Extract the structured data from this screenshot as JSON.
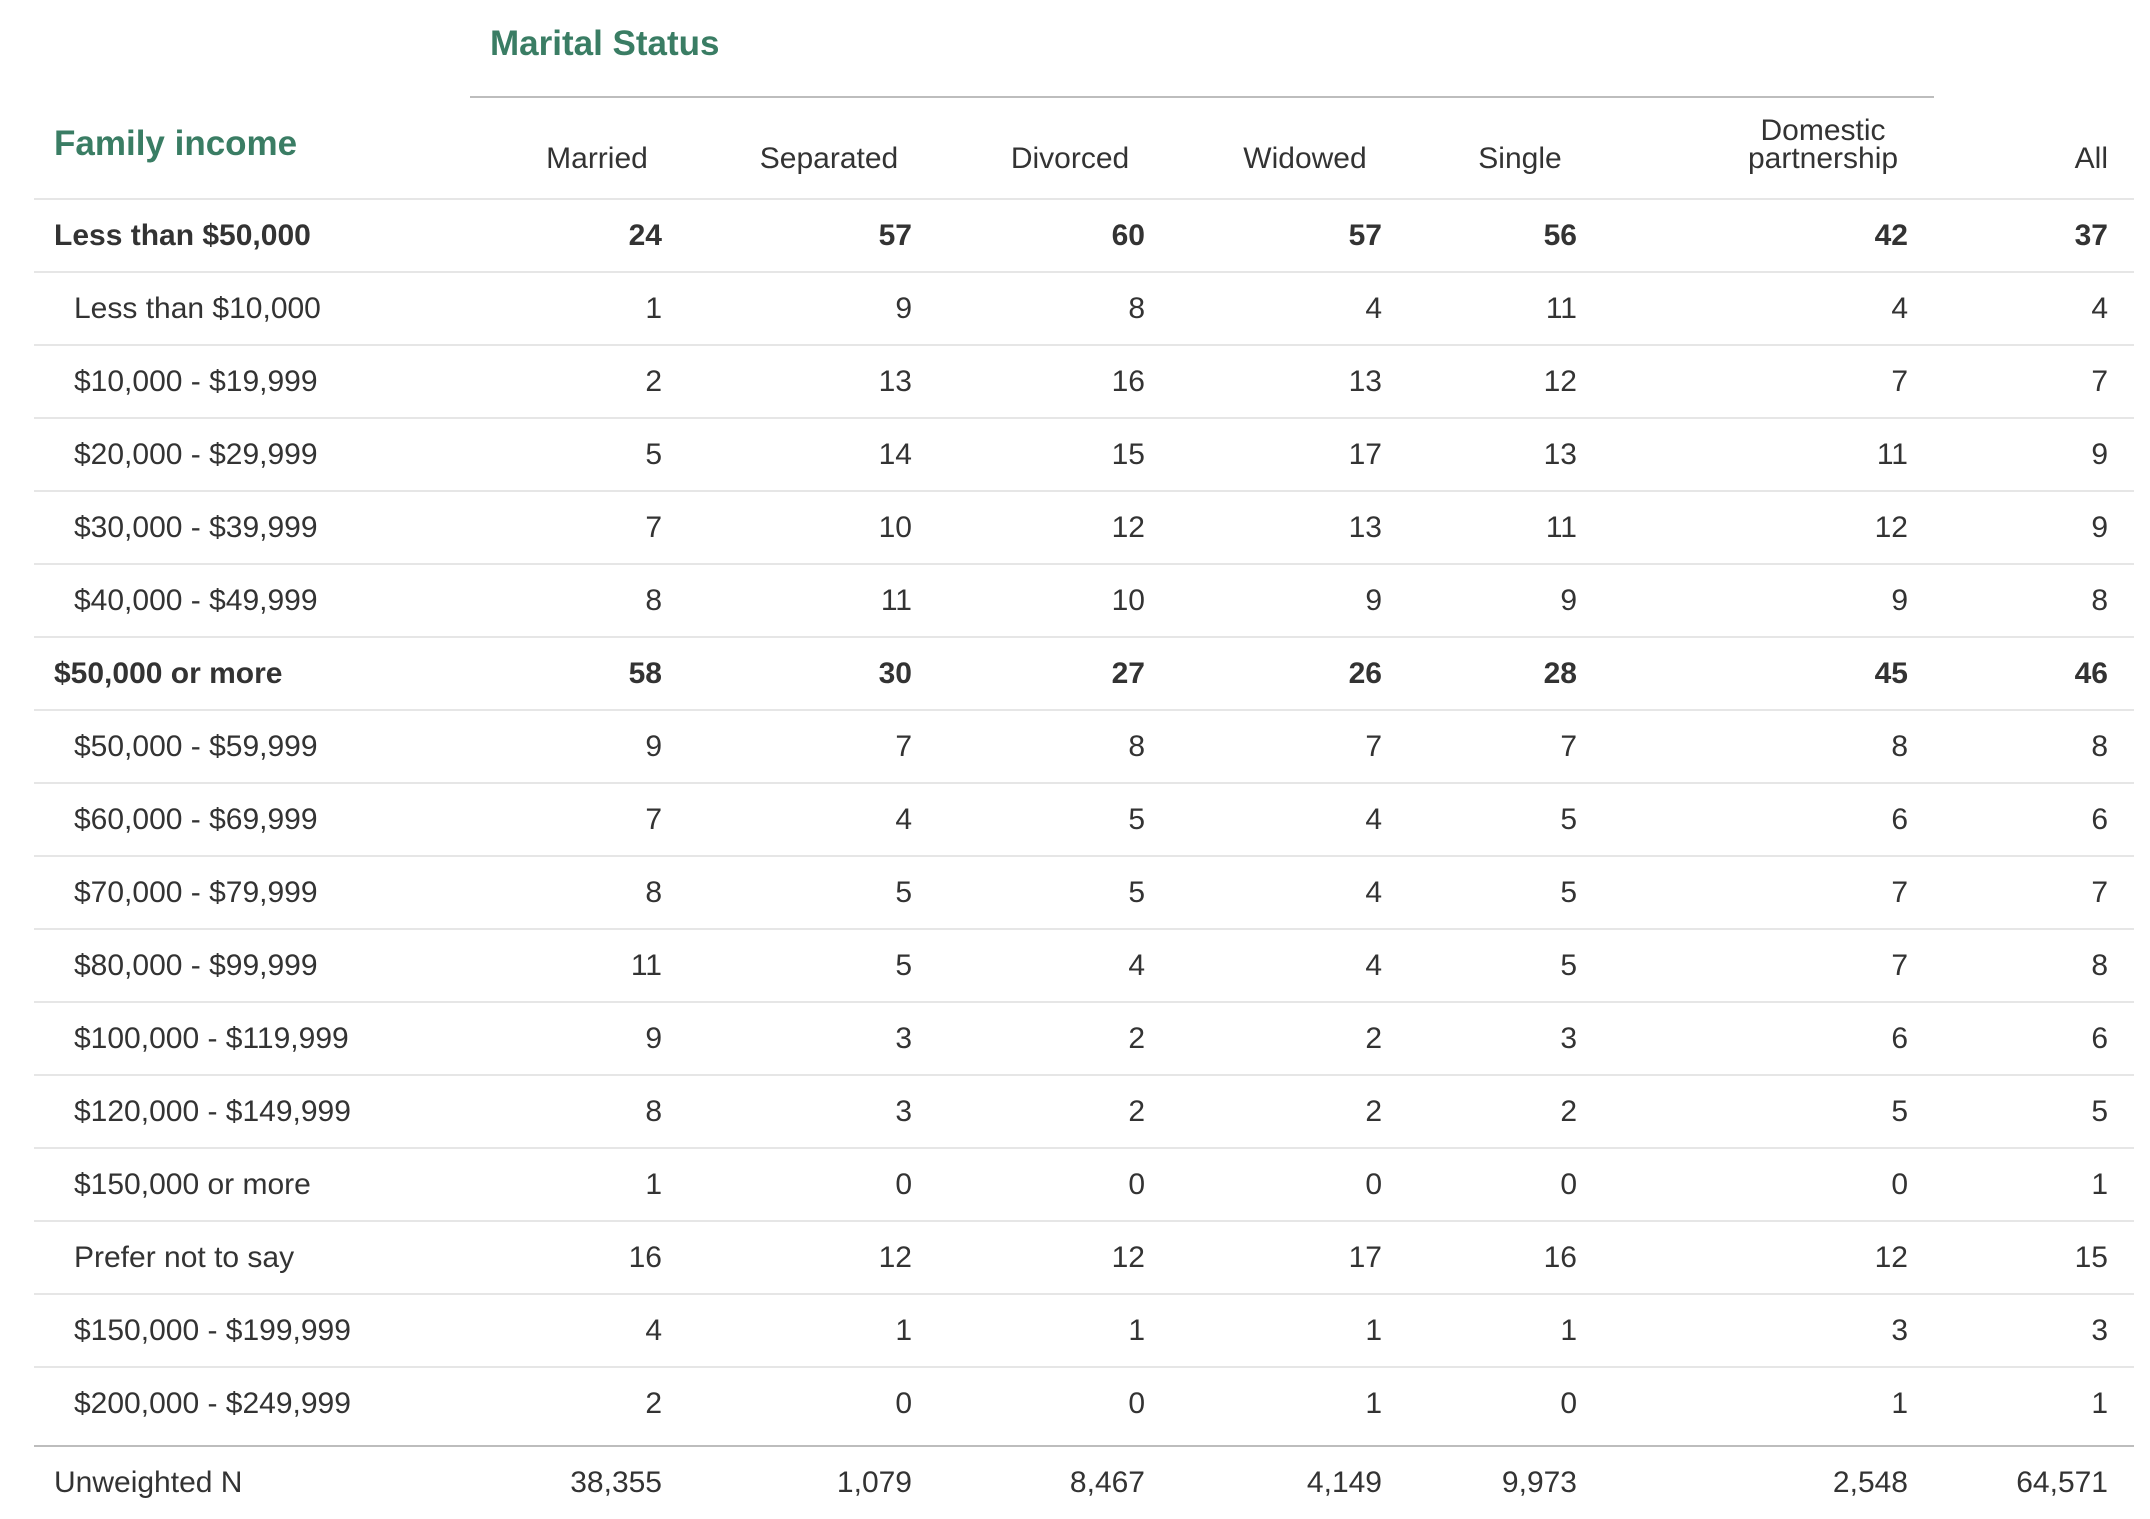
{
  "group_header": "Marital Status",
  "row_header": "Family income",
  "columns": [
    "Married",
    "Separated",
    "Divorced",
    "Widowed",
    "Single",
    "Domestic partnership",
    "All"
  ],
  "rows": [
    {
      "label": "Less than $50,000",
      "bold": true,
      "indent": false,
      "values": [
        "24",
        "57",
        "60",
        "57",
        "56",
        "42",
        "37"
      ]
    },
    {
      "label": "Less than $10,000",
      "bold": false,
      "indent": true,
      "values": [
        "1",
        "9",
        "8",
        "4",
        "11",
        "4",
        "4"
      ]
    },
    {
      "label": "$10,000 - $19,999",
      "bold": false,
      "indent": true,
      "values": [
        "2",
        "13",
        "16",
        "13",
        "12",
        "7",
        "7"
      ]
    },
    {
      "label": "$20,000 - $29,999",
      "bold": false,
      "indent": true,
      "values": [
        "5",
        "14",
        "15",
        "17",
        "13",
        "11",
        "9"
      ]
    },
    {
      "label": "$30,000 - $39,999",
      "bold": false,
      "indent": true,
      "values": [
        "7",
        "10",
        "12",
        "13",
        "11",
        "12",
        "9"
      ]
    },
    {
      "label": "$40,000 - $49,999",
      "bold": false,
      "indent": true,
      "values": [
        "8",
        "11",
        "10",
        "9",
        "9",
        "9",
        "8"
      ]
    },
    {
      "label": "$50,000 or more",
      "bold": true,
      "indent": false,
      "values": [
        "58",
        "30",
        "27",
        "26",
        "28",
        "45",
        "46"
      ]
    },
    {
      "label": "$50,000 - $59,999",
      "bold": false,
      "indent": true,
      "values": [
        "9",
        "7",
        "8",
        "7",
        "7",
        "8",
        "8"
      ]
    },
    {
      "label": "$60,000 - $69,999",
      "bold": false,
      "indent": true,
      "values": [
        "7",
        "4",
        "5",
        "4",
        "5",
        "6",
        "6"
      ]
    },
    {
      "label": "$70,000 - $79,999",
      "bold": false,
      "indent": true,
      "values": [
        "8",
        "5",
        "5",
        "4",
        "5",
        "7",
        "7"
      ]
    },
    {
      "label": "$80,000 - $99,999",
      "bold": false,
      "indent": true,
      "values": [
        "11",
        "5",
        "4",
        "4",
        "5",
        "7",
        "8"
      ]
    },
    {
      "label": "$100,000 - $119,999",
      "bold": false,
      "indent": true,
      "values": [
        "9",
        "3",
        "2",
        "2",
        "3",
        "6",
        "6"
      ]
    },
    {
      "label": "$120,000 - $149,999",
      "bold": false,
      "indent": true,
      "values": [
        "8",
        "3",
        "2",
        "2",
        "2",
        "5",
        "5"
      ]
    },
    {
      "label": "$150,000 or more",
      "bold": false,
      "indent": true,
      "values": [
        "1",
        "0",
        "0",
        "0",
        "0",
        "0",
        "1"
      ]
    },
    {
      "label": "Prefer not to say",
      "bold": false,
      "indent": true,
      "values": [
        "16",
        "12",
        "12",
        "17",
        "16",
        "12",
        "15"
      ]
    },
    {
      "label": "$150,000 - $199,999",
      "bold": false,
      "indent": true,
      "values": [
        "4",
        "1",
        "1",
        "1",
        "1",
        "3",
        "3"
      ]
    },
    {
      "label": "$200,000 - $249,999",
      "bold": false,
      "indent": true,
      "values": [
        "2",
        "0",
        "0",
        "1",
        "0",
        "1",
        "1"
      ]
    }
  ],
  "total_row": {
    "label": "Unweighted N",
    "values": [
      "38,355",
      "1,079",
      "8,467",
      "4,149",
      "9,973",
      "2,548",
      "64,571"
    ]
  }
}
